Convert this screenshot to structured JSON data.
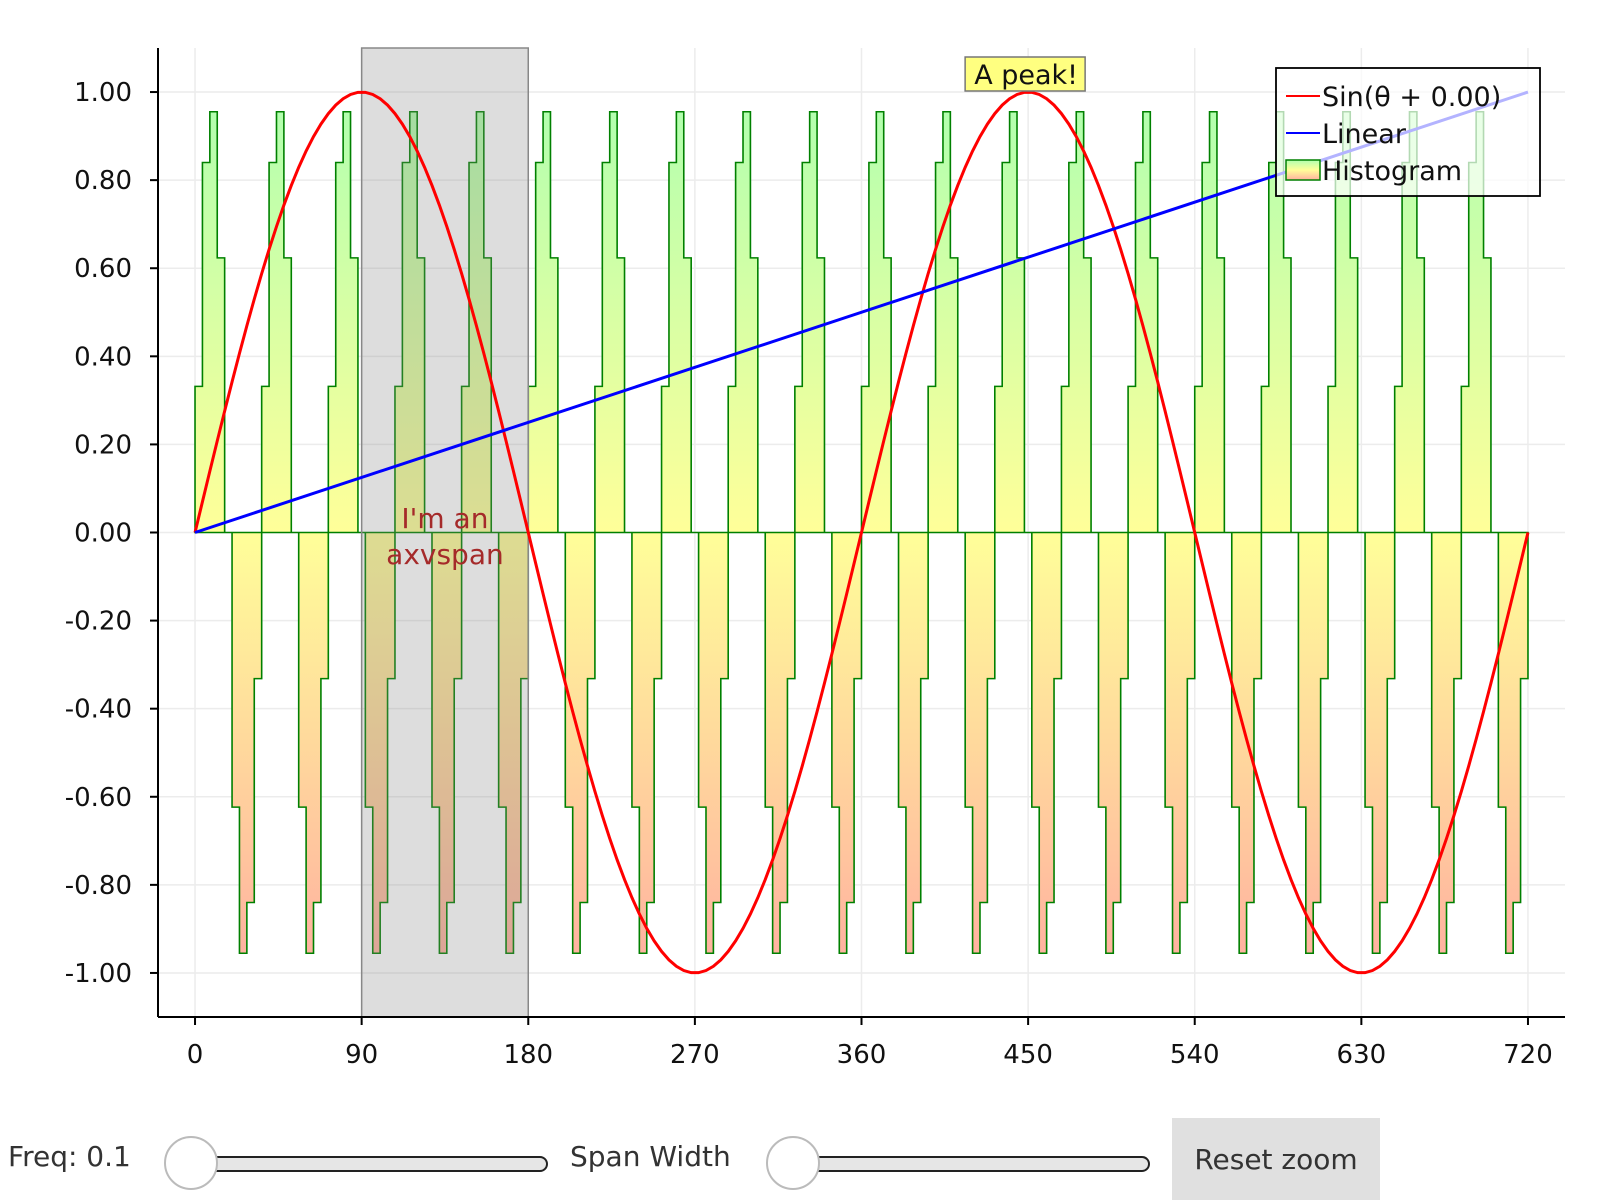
{
  "chart_data": {
    "type": "line",
    "x_ticks": [
      "0",
      "90",
      "180",
      "270",
      "360",
      "450",
      "540",
      "630",
      "720"
    ],
    "y_ticks": [
      "1.00",
      "0.80",
      "0.60",
      "0.40",
      "0.20",
      "0.00",
      "-0.20",
      "-0.40",
      "-0.60",
      "-0.80",
      "-1.00"
    ],
    "xlim": [
      -20,
      740
    ],
    "ylim": [
      -1.1,
      1.1
    ],
    "grid": true,
    "legend_position": "top-right",
    "series": [
      {
        "name": "Sin(θ + 0.00)",
        "kind": "line",
        "color": "#ff0000",
        "function": "sin(x degrees)"
      },
      {
        "name": "Linear",
        "kind": "line",
        "color": "#0000ff",
        "x": [
          0,
          720
        ],
        "y": [
          0,
          1
        ]
      },
      {
        "name": "Histogram",
        "kind": "step-area",
        "color": "#008000",
        "function": "sin(2*pi*x/36) approx, step width 4",
        "period": 36
      }
    ],
    "axvspan": {
      "x0": 90,
      "x1": 180,
      "label": "I'm an\naxvspan"
    },
    "annotation": {
      "text": "A peak!",
      "x": 450,
      "y": 1.0
    }
  },
  "controls": {
    "freq_label": "Freq: 0.1",
    "freq_value": 0.1,
    "freq_fraction": 0.0,
    "span_label": "Span Width",
    "span_fraction": 0.0,
    "reset_label": "Reset zoom"
  }
}
